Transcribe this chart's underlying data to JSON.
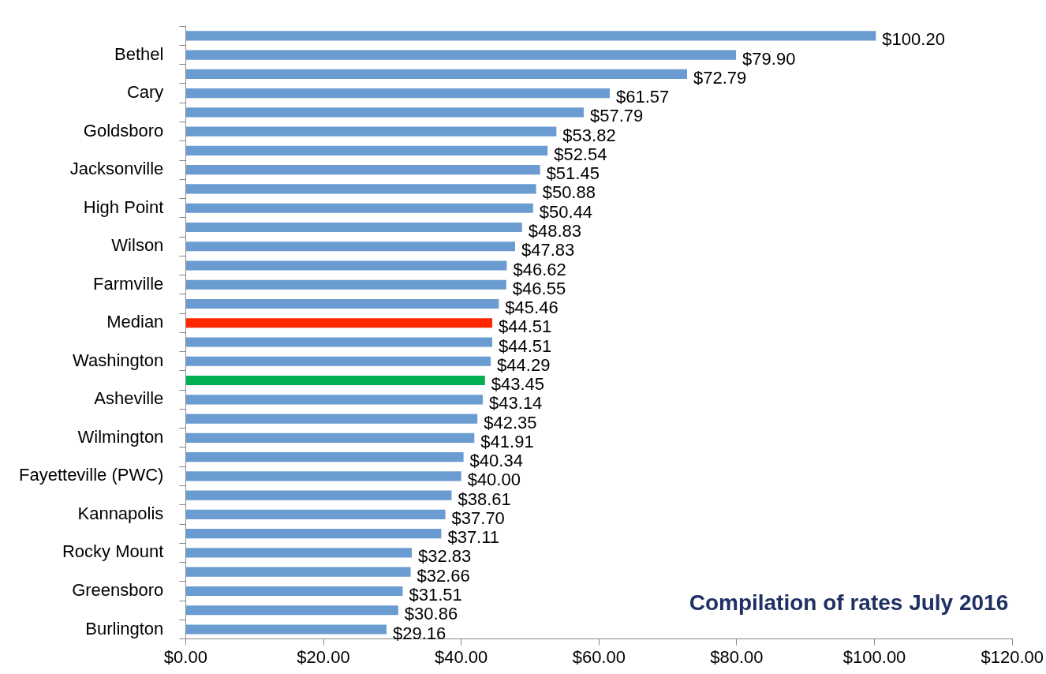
{
  "chart_data": {
    "type": "bar",
    "orientation": "horizontal",
    "categories": [
      null,
      "Bethel",
      null,
      "Cary",
      null,
      "Goldsboro",
      null,
      "Jacksonville",
      null,
      "High Point",
      null,
      "Wilson",
      null,
      "Farmville",
      null,
      "Median",
      null,
      "Washington",
      null,
      "Asheville",
      null,
      "Wilmington",
      null,
      "Fayetteville (PWC)",
      null,
      "Kannapolis",
      null,
      "Rocky Mount",
      null,
      "Greensboro",
      null,
      "Burlington"
    ],
    "values": [
      100.2,
      79.9,
      72.79,
      61.57,
      57.79,
      53.82,
      52.54,
      51.45,
      50.88,
      50.44,
      48.83,
      47.83,
      46.62,
      46.55,
      45.46,
      44.51,
      44.51,
      44.29,
      43.45,
      43.14,
      42.35,
      41.91,
      40.34,
      40.0,
      38.61,
      37.7,
      37.11,
      32.83,
      32.66,
      31.51,
      30.86,
      29.16
    ],
    "value_labels": [
      "$100.20",
      "$79.90",
      "$72.79",
      "$61.57",
      "$57.79",
      "$53.82",
      "$52.54",
      "$51.45",
      "$50.88",
      "$50.44",
      "$48.83",
      "$47.83",
      "$46.62",
      "$46.55",
      "$45.46",
      "$44.51",
      "$44.51",
      "$44.29",
      "$43.45",
      "$43.14",
      "$42.35",
      "$41.91",
      "$40.34",
      "$40.00",
      "$38.61",
      "$37.70",
      "$37.11",
      "$32.83",
      "$32.66",
      "$31.51",
      "$30.86",
      "$29.16"
    ],
    "colors": [
      "#6a9bd1",
      "#6a9bd1",
      "#6a9bd1",
      "#6a9bd1",
      "#6a9bd1",
      "#6a9bd1",
      "#6a9bd1",
      "#6a9bd1",
      "#6a9bd1",
      "#6a9bd1",
      "#6a9bd1",
      "#6a9bd1",
      "#6a9bd1",
      "#6a9bd1",
      "#6a9bd1",
      "#ff2600",
      "#6a9bd1",
      "#6a9bd1",
      "#00b050",
      "#6a9bd1",
      "#6a9bd1",
      "#6a9bd1",
      "#6a9bd1",
      "#6a9bd1",
      "#6a9bd1",
      "#6a9bd1",
      "#6a9bd1",
      "#6a9bd1",
      "#6a9bd1",
      "#6a9bd1",
      "#6a9bd1",
      "#6a9bd1"
    ],
    "xlim": [
      0,
      120
    ],
    "xticks": [
      {
        "value": 0,
        "label": "$0.00"
      },
      {
        "value": 20,
        "label": "$20.00"
      },
      {
        "value": 40,
        "label": "$40.00"
      },
      {
        "value": 60,
        "label": "$60.00"
      },
      {
        "value": 80,
        "label": "$80.00"
      },
      {
        "value": 100,
        "label": "$100.00"
      },
      {
        "value": 120,
        "label": "$120.00"
      }
    ],
    "annotations": [
      "Compilation of rates July 2016"
    ],
    "grid": false,
    "legend": false
  }
}
